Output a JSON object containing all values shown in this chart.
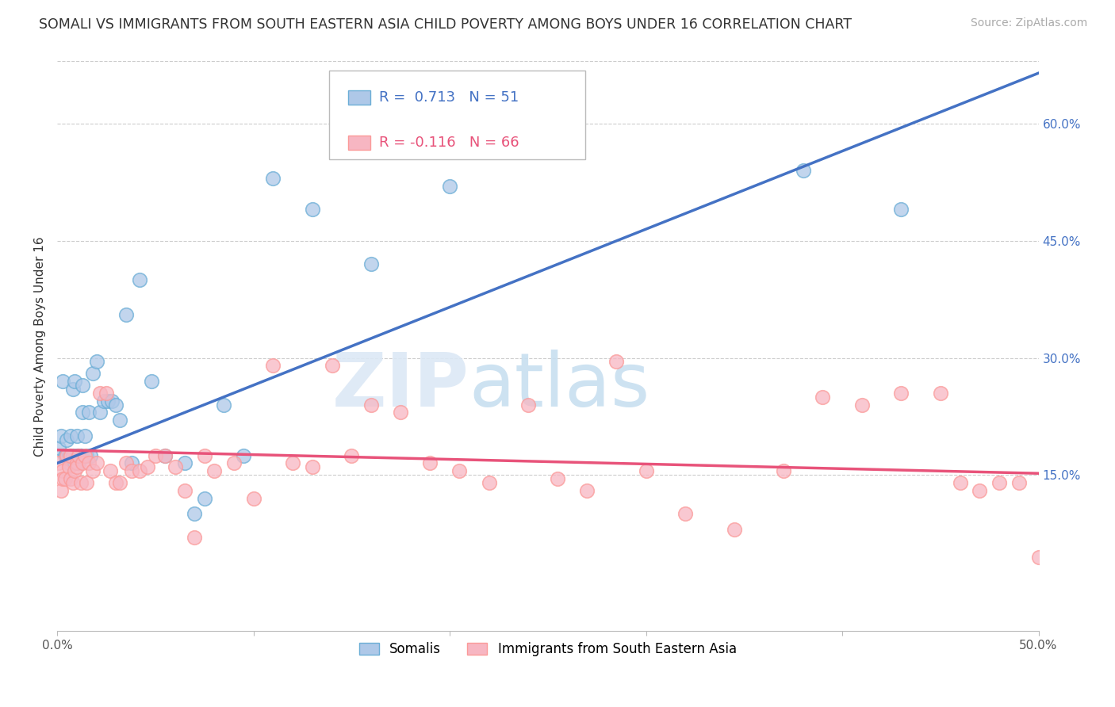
{
  "title": "SOMALI VS IMMIGRANTS FROM SOUTH EASTERN ASIA CHILD POVERTY AMONG BOYS UNDER 16 CORRELATION CHART",
  "source": "Source: ZipAtlas.com",
  "ylabel": "Child Poverty Among Boys Under 16",
  "xlim": [
    0.0,
    0.5
  ],
  "ylim": [
    -0.05,
    0.68
  ],
  "x_ticks": [
    0.0,
    0.1,
    0.2,
    0.3,
    0.4,
    0.5
  ],
  "x_tick_labels": [
    "0.0%",
    "",
    "",
    "",
    "",
    "50.0%"
  ],
  "y_ticks_right": [
    0.15,
    0.3,
    0.45,
    0.6
  ],
  "y_tick_labels_right": [
    "15.0%",
    "30.0%",
    "45.0%",
    "60.0%"
  ],
  "somali_color": "#aec8e8",
  "sea_color": "#f7b6c2",
  "somali_edge_color": "#6baed6",
  "sea_edge_color": "#fb9a99",
  "trend_somali_color": "#4472c4",
  "trend_sea_color": "#e8537a",
  "somali_R": 0.713,
  "somali_N": 51,
  "sea_R": -0.116,
  "sea_N": 66,
  "somali_trend_x": [
    0.0,
    0.5
  ],
  "somali_trend_y": [
    0.165,
    0.665
  ],
  "sea_trend_x": [
    0.0,
    0.5
  ],
  "sea_trend_y": [
    0.182,
    0.152
  ],
  "somali_x": [
    0.001,
    0.002,
    0.003,
    0.004,
    0.005,
    0.005,
    0.006,
    0.006,
    0.007,
    0.007,
    0.008,
    0.008,
    0.009,
    0.009,
    0.01,
    0.01,
    0.011,
    0.011,
    0.012,
    0.012,
    0.013,
    0.013,
    0.014,
    0.015,
    0.016,
    0.017,
    0.018,
    0.02,
    0.022,
    0.024,
    0.026,
    0.028,
    0.03,
    0.032,
    0.035,
    0.038,
    0.042,
    0.048,
    0.055,
    0.065,
    0.07,
    0.075,
    0.085,
    0.095,
    0.11,
    0.13,
    0.16,
    0.2,
    0.26,
    0.38,
    0.43
  ],
  "somali_y": [
    0.185,
    0.2,
    0.27,
    0.175,
    0.195,
    0.175,
    0.175,
    0.165,
    0.2,
    0.175,
    0.26,
    0.175,
    0.27,
    0.165,
    0.2,
    0.175,
    0.175,
    0.165,
    0.175,
    0.175,
    0.265,
    0.23,
    0.2,
    0.175,
    0.23,
    0.175,
    0.28,
    0.295,
    0.23,
    0.245,
    0.245,
    0.245,
    0.24,
    0.22,
    0.355,
    0.165,
    0.4,
    0.27,
    0.175,
    0.165,
    0.1,
    0.12,
    0.24,
    0.175,
    0.53,
    0.49,
    0.42,
    0.52,
    0.61,
    0.54,
    0.49
  ],
  "sea_x": [
    0.001,
    0.002,
    0.003,
    0.003,
    0.004,
    0.005,
    0.006,
    0.007,
    0.007,
    0.008,
    0.009,
    0.01,
    0.01,
    0.011,
    0.012,
    0.013,
    0.014,
    0.015,
    0.016,
    0.018,
    0.02,
    0.022,
    0.025,
    0.027,
    0.03,
    0.032,
    0.035,
    0.038,
    0.042,
    0.046,
    0.05,
    0.055,
    0.06,
    0.065,
    0.07,
    0.075,
    0.08,
    0.09,
    0.1,
    0.11,
    0.12,
    0.13,
    0.14,
    0.15,
    0.16,
    0.175,
    0.19,
    0.205,
    0.22,
    0.24,
    0.255,
    0.27,
    0.285,
    0.3,
    0.32,
    0.345,
    0.37,
    0.39,
    0.41,
    0.43,
    0.45,
    0.46,
    0.47,
    0.48,
    0.49,
    0.5
  ],
  "sea_y": [
    0.165,
    0.13,
    0.155,
    0.145,
    0.145,
    0.175,
    0.16,
    0.145,
    0.175,
    0.14,
    0.155,
    0.165,
    0.16,
    0.175,
    0.14,
    0.165,
    0.175,
    0.14,
    0.165,
    0.155,
    0.165,
    0.255,
    0.255,
    0.155,
    0.14,
    0.14,
    0.165,
    0.155,
    0.155,
    0.16,
    0.175,
    0.175,
    0.16,
    0.13,
    0.07,
    0.175,
    0.155,
    0.165,
    0.12,
    0.29,
    0.165,
    0.16,
    0.29,
    0.175,
    0.24,
    0.23,
    0.165,
    0.155,
    0.14,
    0.24,
    0.145,
    0.13,
    0.295,
    0.155,
    0.1,
    0.08,
    0.155,
    0.25,
    0.24,
    0.255,
    0.255,
    0.14,
    0.13,
    0.14,
    0.14,
    0.045
  ],
  "watermark_zip": "ZIP",
  "watermark_atlas": "atlas",
  "background_color": "#ffffff",
  "grid_color": "#cccccc",
  "title_fontsize": 12.5,
  "axis_label_fontsize": 11,
  "tick_fontsize": 11,
  "legend_fontsize": 13,
  "source_fontsize": 10
}
